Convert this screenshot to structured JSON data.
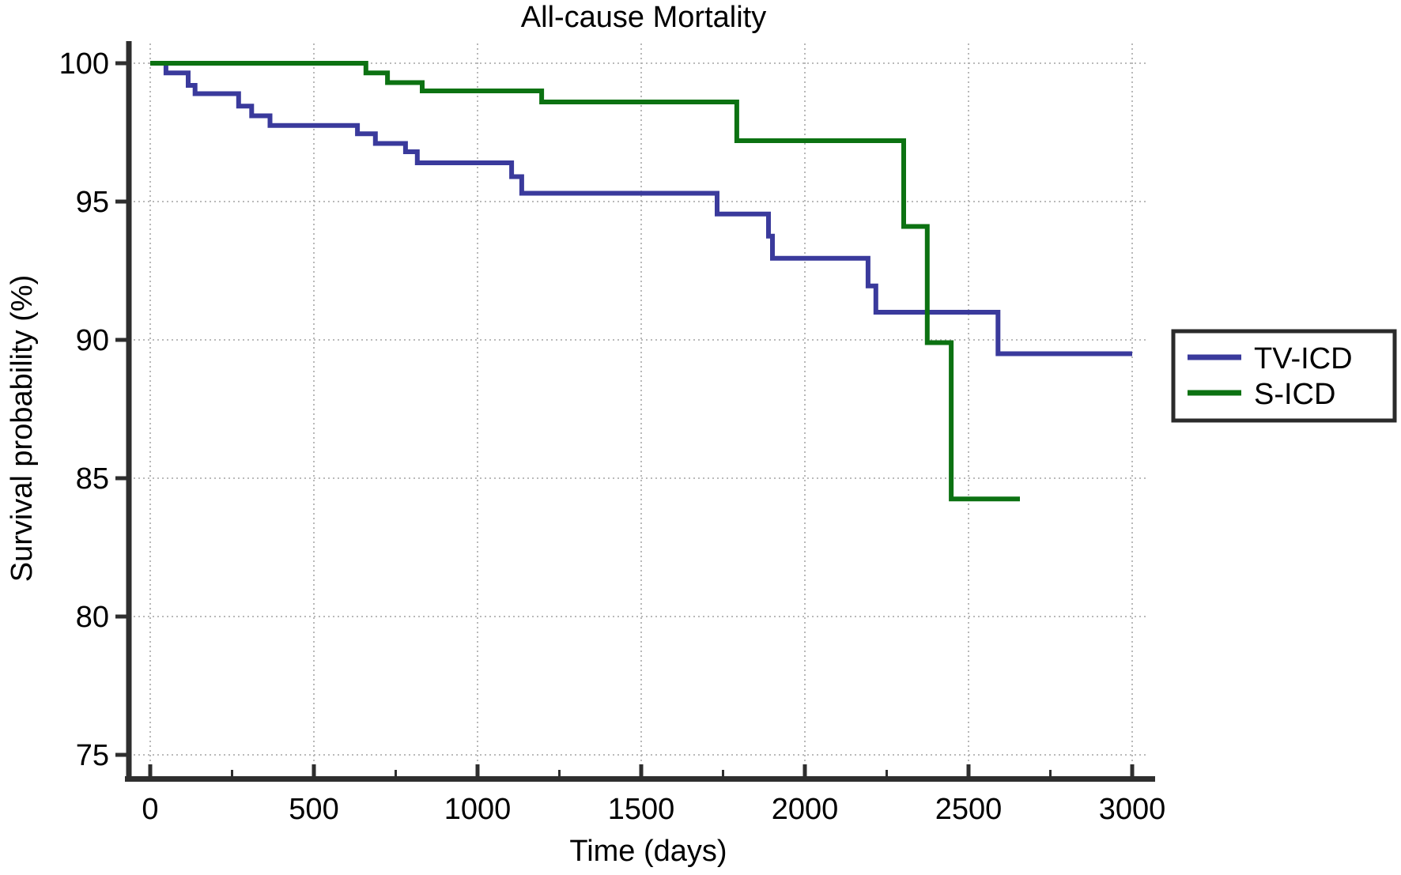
{
  "chart_data": {
    "type": "line",
    "subtype": "kaplan-meier-step",
    "title": "All-cause Mortality",
    "xlabel": "Time (days)",
    "ylabel": "Survival probability (%)",
    "xlim": [
      0,
      3000
    ],
    "ylim": [
      75,
      100
    ],
    "x_ticks": [
      0,
      500,
      1000,
      1500,
      2000,
      2500,
      3000
    ],
    "x_minor_ticks": [
      250,
      750,
      1250,
      1750,
      2250,
      2750
    ],
    "y_ticks": [
      100,
      95,
      90,
      85,
      80,
      75
    ],
    "grid": "dotted",
    "legend_position": "right",
    "colors": {
      "axis": "#2e2e2e",
      "grid": "#b0b0b0",
      "background": "#ffffff",
      "tv_icd": "#3a3a9c",
      "s_icd": "#0c7212"
    },
    "series": [
      {
        "name": "TV-ICD",
        "color": "#3a3a9c",
        "step": true,
        "points": [
          [
            0,
            100
          ],
          [
            48,
            99.65
          ],
          [
            116,
            99.2
          ],
          [
            137,
            98.9
          ],
          [
            270,
            98.45
          ],
          [
            310,
            98.1
          ],
          [
            366,
            97.75
          ],
          [
            633,
            97.45
          ],
          [
            688,
            97.1
          ],
          [
            780,
            96.8
          ],
          [
            816,
            96.4
          ],
          [
            1104,
            95.9
          ],
          [
            1135,
            95.3
          ],
          [
            1732,
            94.55
          ],
          [
            1889,
            93.75
          ],
          [
            1901,
            92.95
          ],
          [
            2193,
            91.95
          ],
          [
            2217,
            91.0
          ],
          [
            2590,
            89.5
          ],
          [
            3000,
            89.5
          ]
        ]
      },
      {
        "name": "S-ICD",
        "color": "#0c7212",
        "step": true,
        "points": [
          [
            0,
            100
          ],
          [
            659,
            99.65
          ],
          [
            725,
            99.3
          ],
          [
            831,
            99.0
          ],
          [
            1196,
            98.6
          ],
          [
            1792,
            97.2
          ],
          [
            2302,
            94.1
          ],
          [
            2374,
            89.9
          ],
          [
            2447,
            84.25
          ],
          [
            2657,
            84.25
          ]
        ]
      }
    ]
  }
}
